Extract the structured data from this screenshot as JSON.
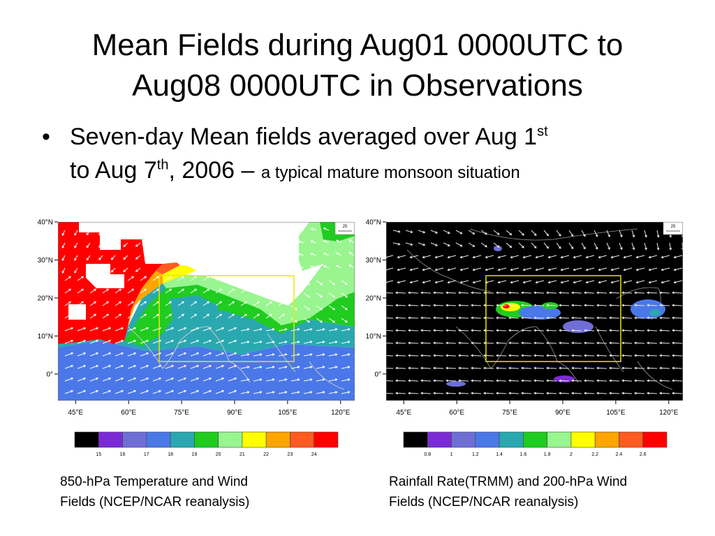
{
  "slide": {
    "title_line1": "Mean Fields during Aug01 0000UTC to",
    "title_line2": "Aug08 0000UTC in Observations",
    "bullet_symbol": "•",
    "bullet": {
      "part1": "Seven-day Mean fields averaged over Aug 1",
      "sup1": "st",
      "part2": "to Aug 7",
      "sup2": "th",
      "part3": ", 2006 – ",
      "part4": "a typical mature monsoon situation"
    }
  },
  "chart_data": [
    {
      "type": "heatmap",
      "title": "",
      "caption_line1": "850-hPa Temperature and Wind",
      "caption_line2": "Fields (NCEP/NCAR reanalysis)",
      "field": "850-hPa temperature with wind vectors",
      "x_ticks": [
        "45°E",
        "60°E",
        "75°E",
        "90°E",
        "105°E",
        "120°E"
      ],
      "x_values": [
        45,
        60,
        75,
        90,
        105,
        120
      ],
      "y_ticks": [
        "40°N",
        "30°N",
        "20°N",
        "10°N",
        "0°"
      ],
      "y_values": [
        40,
        30,
        20,
        10,
        0
      ],
      "xlim": [
        40,
        124
      ],
      "ylim": [
        -7,
        40
      ],
      "reference_vector_label": "25",
      "box_region": {
        "lon": [
          68,
          107
        ],
        "lat": [
          4,
          27
        ]
      },
      "colorbar_levels": [
        "15",
        "16",
        "17",
        "18",
        "19",
        "20",
        "21",
        "22",
        "23",
        "24"
      ],
      "colorbar_colors": [
        "#000000",
        "#7a2bd6",
        "#6f6ed6",
        "#4a78e8",
        "#2aa8b0",
        "#1fcc1f",
        "#99f58f",
        "#ffff00",
        "#ffa500",
        "#ff5a1f",
        "#ff0000"
      ],
      "map_background": "#ffffff"
    },
    {
      "type": "heatmap",
      "title": "",
      "caption_line1": "Rainfall Rate(TRMM) and 200-hPa Wind",
      "caption_line2": "Fields (NCEP/NCAR reanalysis)",
      "field": "TRMM rainfall rate with 200-hPa wind vectors",
      "x_ticks": [
        "45°E",
        "60°E",
        "75°E",
        "90°E",
        "105°E",
        "120°E"
      ],
      "x_values": [
        45,
        60,
        75,
        90,
        105,
        120
      ],
      "y_ticks": [
        "40°N",
        "30°N",
        "20°N",
        "10°N",
        "0°"
      ],
      "y_values": [
        40,
        30,
        20,
        10,
        0
      ],
      "xlim": [
        40,
        124
      ],
      "ylim": [
        -7,
        40
      ],
      "reference_vector_label": "25",
      "box_region": {
        "lon": [
          68,
          107
        ],
        "lat": [
          4,
          27
        ]
      },
      "colorbar_levels": [
        "0.8",
        "1",
        "1.2",
        "1.4",
        "1.6",
        "1.8",
        "2",
        "2.2",
        "2.4",
        "2.6"
      ],
      "colorbar_colors": [
        "#000000",
        "#7a2bd6",
        "#6f6ed6",
        "#4a78e8",
        "#2aa8b0",
        "#1fcc1f",
        "#99f58f",
        "#ffff00",
        "#ffa500",
        "#ff5a1f",
        "#ff0000"
      ],
      "map_background": "#000000"
    }
  ]
}
